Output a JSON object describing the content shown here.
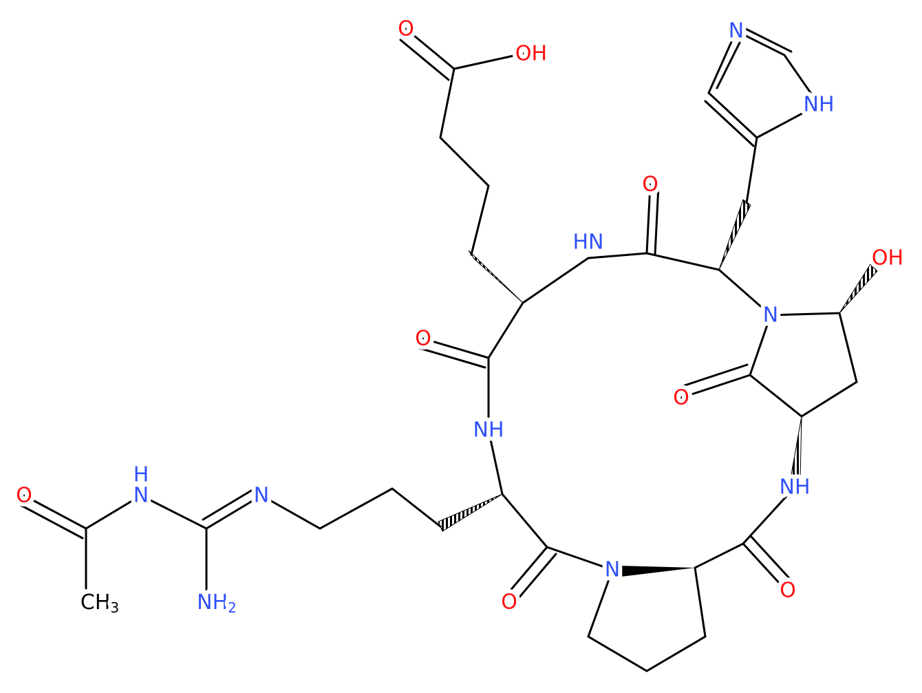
{
  "atoms": [
    {
      "text": "O"
    },
    {
      "text": "OH"
    },
    {
      "text": "N"
    },
    {
      "text": "NH"
    },
    {
      "text": "O"
    },
    {
      "text": "HN"
    },
    {
      "text": "OH"
    },
    {
      "text": "N"
    },
    {
      "text": "O"
    },
    {
      "text": "O"
    },
    {
      "text": "NH"
    },
    {
      "text": "H"
    },
    {
      "text": "N"
    },
    {
      "text": "N"
    },
    {
      "text": "O"
    },
    {
      "text": "NH"
    },
    {
      "text": "N"
    },
    {
      "text": "O"
    },
    {
      "text": "O"
    },
    {
      "text": "NH",
      "sub": "2"
    },
    {
      "text": "CH",
      "sub": "3"
    }
  ]
}
